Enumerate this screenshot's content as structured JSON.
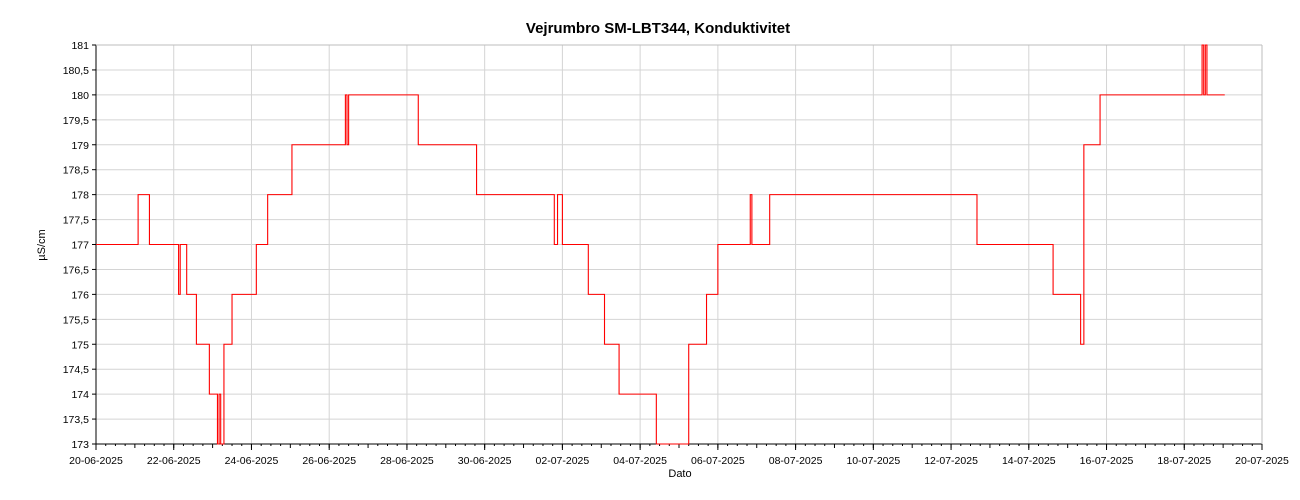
{
  "chart_data": {
    "type": "line",
    "title": "Vejrumbro SM-LBT344, Konduktivitet",
    "xlabel": "Dato",
    "ylabel": "µS/cm",
    "xlim": [
      "2025-06-20",
      "2025-07-20"
    ],
    "ylim": [
      173,
      181
    ],
    "x_ticks": [
      "20-06-2025",
      "22-06-2025",
      "24-06-2025",
      "26-06-2025",
      "28-06-2025",
      "30-06-2025",
      "02-07-2025",
      "04-07-2025",
      "06-07-2025",
      "08-07-2025",
      "10-07-2025",
      "12-07-2025",
      "14-07-2025",
      "16-07-2025",
      "18-07-2025",
      "20-07-2025"
    ],
    "y_ticks": [
      "173",
      "173,5",
      "174",
      "174,5",
      "175",
      "175,5",
      "176",
      "176,5",
      "177",
      "177,5",
      "178",
      "178,5",
      "179",
      "179,5",
      "180",
      "180,5",
      "181"
    ],
    "grid": true,
    "series": [
      {
        "color": "#ff0000",
        "points": [
          [
            "2025-06-20T00:00",
            177
          ],
          [
            "2025-06-21T02:00",
            177
          ],
          [
            "2025-06-21T02:00",
            178
          ],
          [
            "2025-06-21T09:00",
            178
          ],
          [
            "2025-06-21T09:00",
            177
          ],
          [
            "2025-06-22T03:00",
            177
          ],
          [
            "2025-06-22T03:00",
            176
          ],
          [
            "2025-06-22T04:00",
            176
          ],
          [
            "2025-06-22T04:00",
            177
          ],
          [
            "2025-06-22T08:00",
            177
          ],
          [
            "2025-06-22T08:00",
            176
          ],
          [
            "2025-06-22T14:00",
            176
          ],
          [
            "2025-06-22T14:00",
            175
          ],
          [
            "2025-06-22T22:00",
            175
          ],
          [
            "2025-06-22T22:00",
            174
          ],
          [
            "2025-06-23T03:00",
            174
          ],
          [
            "2025-06-23T03:00",
            173
          ],
          [
            "2025-06-23T04:00",
            173
          ],
          [
            "2025-06-23T04:00",
            174
          ],
          [
            "2025-06-23T05:00",
            174
          ],
          [
            "2025-06-23T05:00",
            173
          ],
          [
            "2025-06-23T07:00",
            173
          ],
          [
            "2025-06-23T07:00",
            175
          ],
          [
            "2025-06-23T12:00",
            175
          ],
          [
            "2025-06-23T12:00",
            176
          ],
          [
            "2025-06-24T03:00",
            176
          ],
          [
            "2025-06-24T03:00",
            177
          ],
          [
            "2025-06-24T10:00",
            177
          ],
          [
            "2025-06-24T10:00",
            178
          ],
          [
            "2025-06-25T01:00",
            178
          ],
          [
            "2025-06-25T01:00",
            179
          ],
          [
            "2025-06-26T10:00",
            179
          ],
          [
            "2025-06-26T10:00",
            180
          ],
          [
            "2025-06-26T11:00",
            180
          ],
          [
            "2025-06-26T11:00",
            179
          ],
          [
            "2025-06-26T12:00",
            179
          ],
          [
            "2025-06-26T12:00",
            180
          ],
          [
            "2025-06-28T07:00",
            180
          ],
          [
            "2025-06-28T07:00",
            179
          ],
          [
            "2025-06-29T19:00",
            179
          ],
          [
            "2025-06-29T19:00",
            178
          ],
          [
            "2025-07-01T19:00",
            178
          ],
          [
            "2025-07-01T19:00",
            177
          ],
          [
            "2025-07-01T21:00",
            177
          ],
          [
            "2025-07-01T21:00",
            178
          ],
          [
            "2025-07-02T00:00",
            178
          ],
          [
            "2025-07-02T00:00",
            177
          ],
          [
            "2025-07-02T16:00",
            177
          ],
          [
            "2025-07-02T16:00",
            176
          ],
          [
            "2025-07-03T02:00",
            176
          ],
          [
            "2025-07-03T02:00",
            175
          ],
          [
            "2025-07-03T11:00",
            175
          ],
          [
            "2025-07-03T11:00",
            174
          ],
          [
            "2025-07-04T10:00",
            174
          ],
          [
            "2025-07-04T10:00",
            173
          ],
          [
            "2025-07-05T06:00",
            173
          ],
          [
            "2025-07-05T06:00",
            175
          ],
          [
            "2025-07-05T17:00",
            175
          ],
          [
            "2025-07-05T17:00",
            176
          ],
          [
            "2025-07-06T00:00",
            176
          ],
          [
            "2025-07-06T00:00",
            177
          ],
          [
            "2025-07-06T20:00",
            177
          ],
          [
            "2025-07-06T20:00",
            178
          ],
          [
            "2025-07-06T21:00",
            178
          ],
          [
            "2025-07-06T21:00",
            177
          ],
          [
            "2025-07-07T08:00",
            177
          ],
          [
            "2025-07-07T08:00",
            178
          ],
          [
            "2025-07-12T16:00",
            178
          ],
          [
            "2025-07-12T16:00",
            177
          ],
          [
            "2025-07-14T15:00",
            177
          ],
          [
            "2025-07-14T15:00",
            176
          ],
          [
            "2025-07-15T08:00",
            176
          ],
          [
            "2025-07-15T08:00",
            175
          ],
          [
            "2025-07-15T10:00",
            175
          ],
          [
            "2025-07-15T10:00",
            179
          ],
          [
            "2025-07-15T20:00",
            179
          ],
          [
            "2025-07-15T20:00",
            180
          ],
          [
            "2025-07-18T11:00",
            180
          ],
          [
            "2025-07-18T11:00",
            181
          ],
          [
            "2025-07-18T12:00",
            181
          ],
          [
            "2025-07-18T12:00",
            180
          ],
          [
            "2025-07-18T13:00",
            180
          ],
          [
            "2025-07-18T13:00",
            181
          ],
          [
            "2025-07-18T14:00",
            181
          ],
          [
            "2025-07-18T14:00",
            180
          ],
          [
            "2025-07-19T01:00",
            180
          ]
        ]
      }
    ]
  }
}
